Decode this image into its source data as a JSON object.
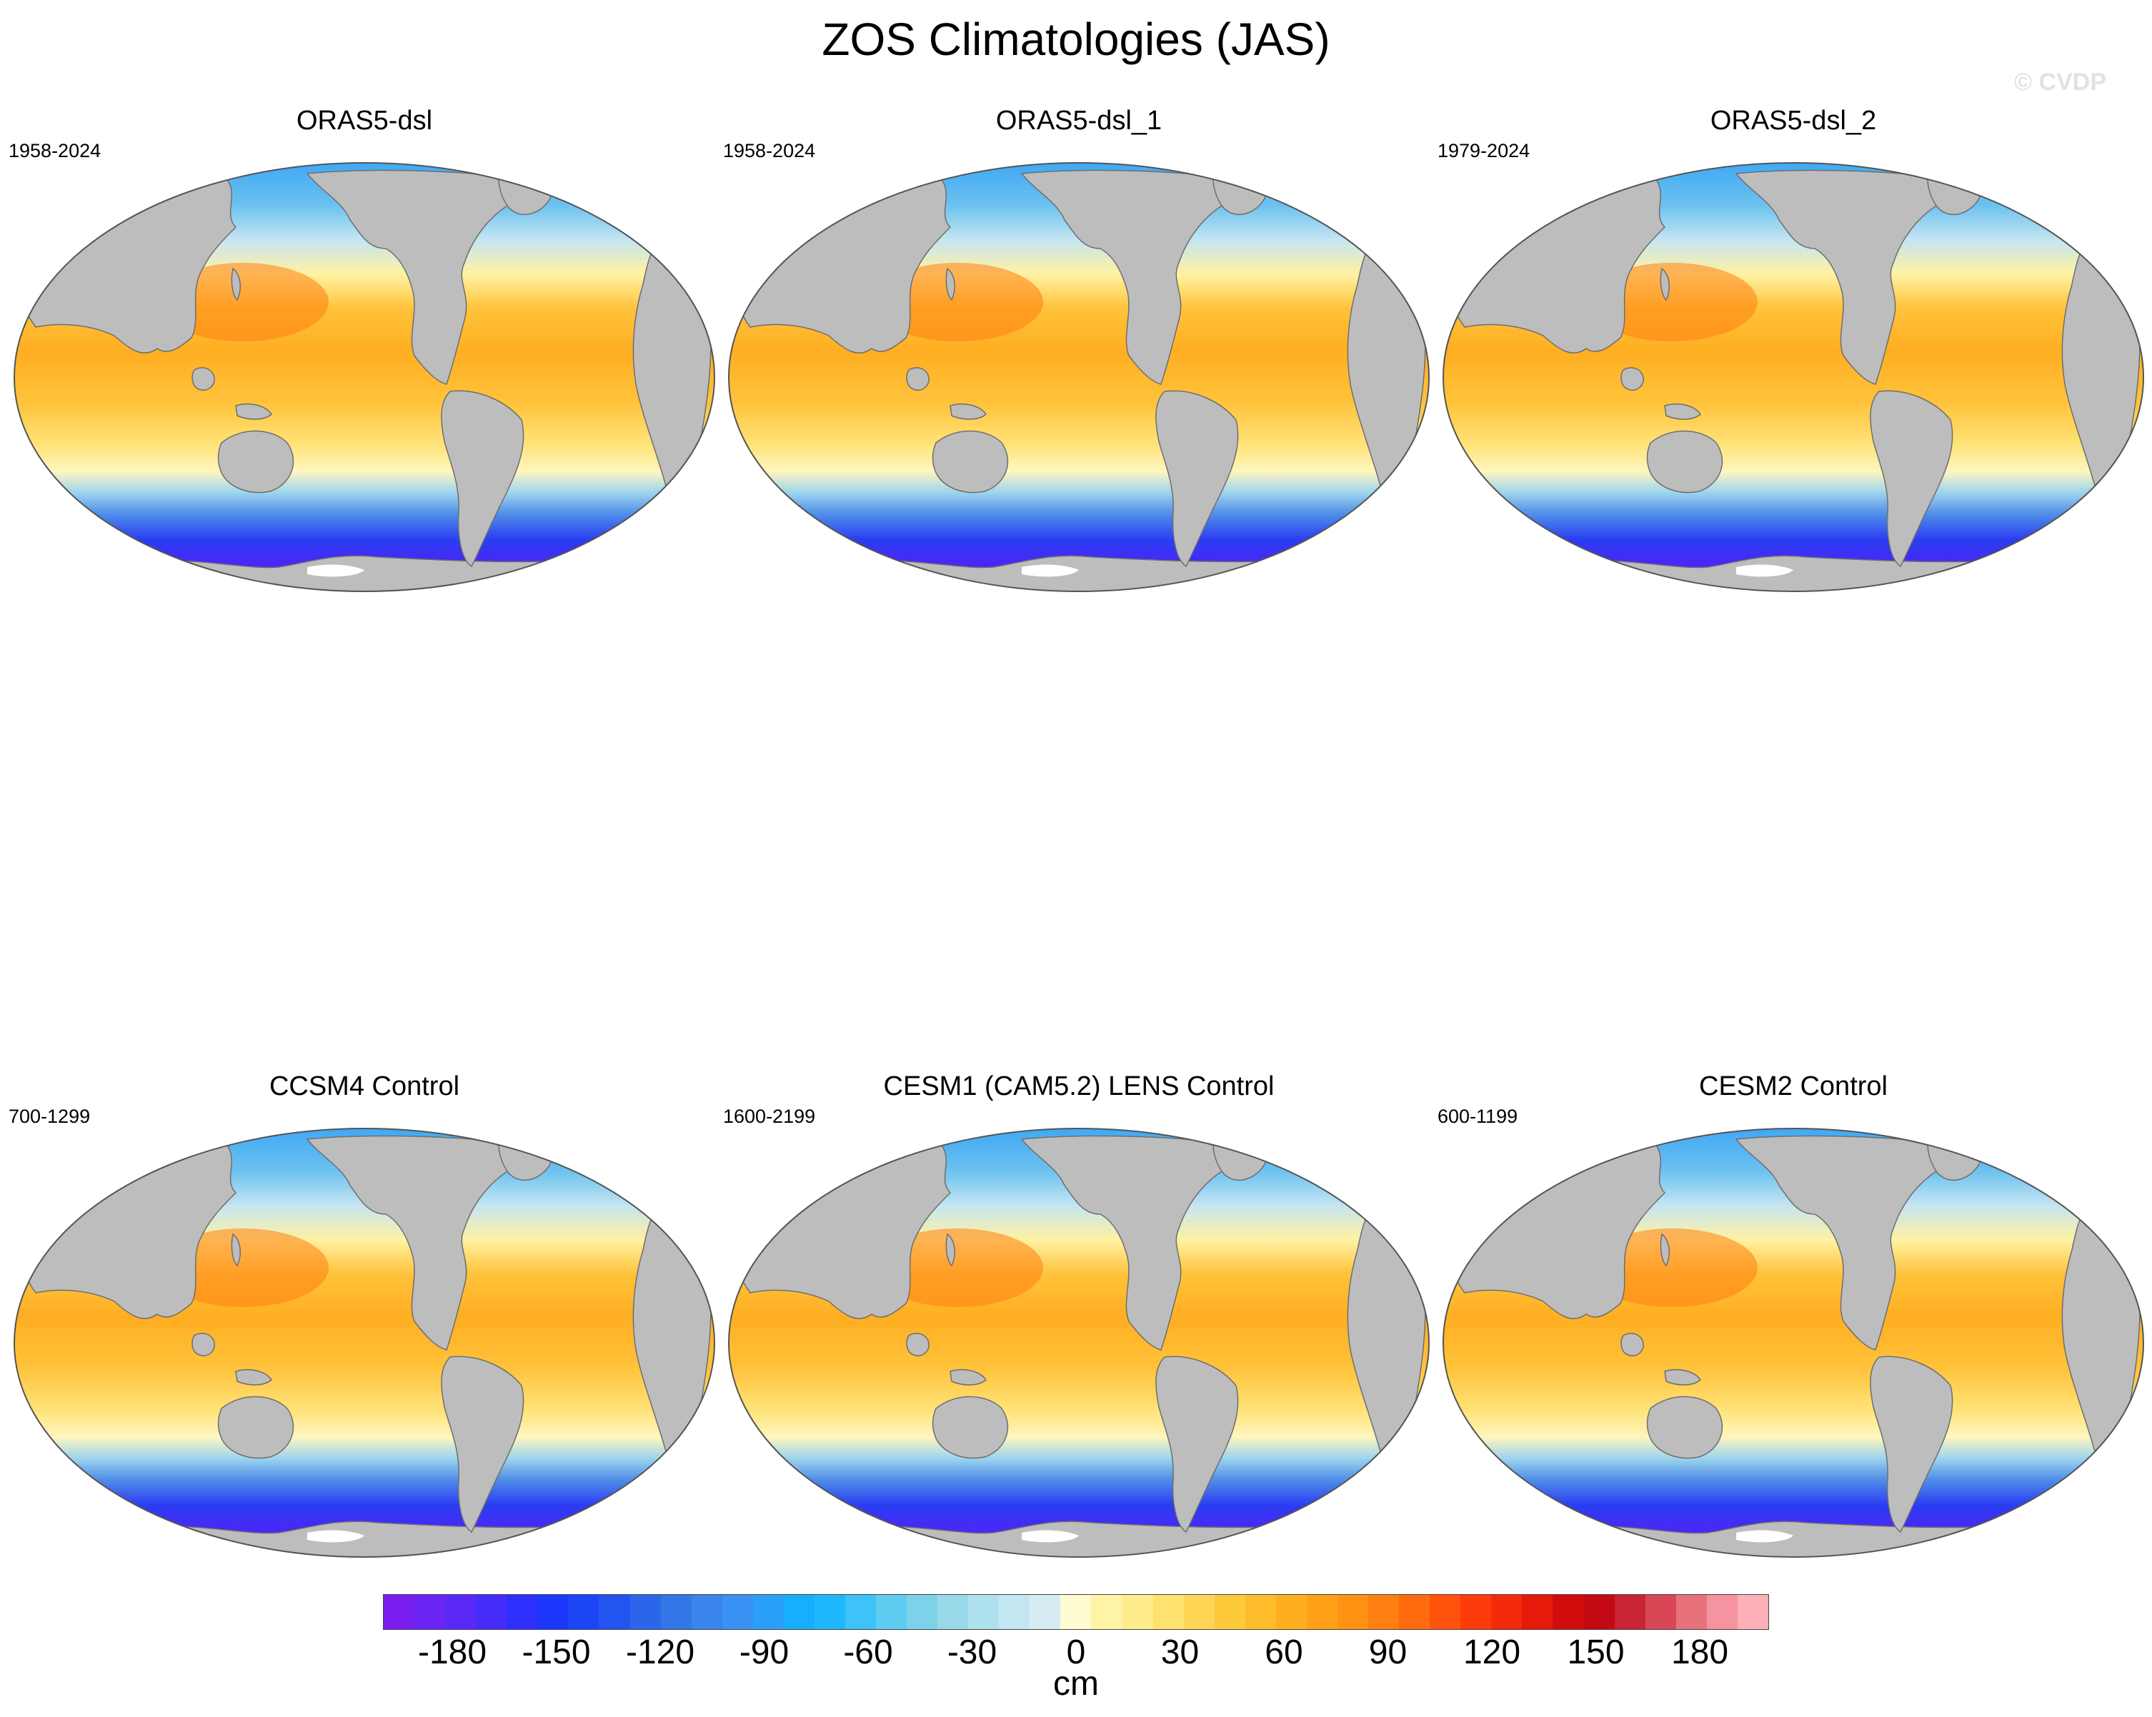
{
  "figure": {
    "title": "ZOS Climatologies (JAS)",
    "watermark": "© CVDP"
  },
  "panels": [
    {
      "title": "ORAS5-dsl",
      "years": "1958-2024"
    },
    {
      "title": "ORAS5-dsl_1",
      "years": "1958-2024"
    },
    {
      "title": "ORAS5-dsl_2",
      "years": "1979-2024"
    },
    {
      "title": "CCSM4 Control",
      "years": "700-1299"
    },
    {
      "title": "CESM1 (CAM5.2) LENS Control",
      "years": "1600-2199"
    },
    {
      "title": "CESM2 Control",
      "years": "600-1199"
    }
  ],
  "colorbar": {
    "units": "cm",
    "min": -200,
    "max": 200,
    "tick_labels": [
      "-180",
      "-150",
      "-120",
      "-90",
      "-60",
      "-30",
      "0",
      "30",
      "60",
      "90",
      "120",
      "150",
      "180"
    ],
    "tick_values": [
      -180,
      -150,
      -120,
      -90,
      -60,
      -30,
      0,
      30,
      60,
      90,
      120,
      150,
      180
    ],
    "colors": [
      "#7a1ff0",
      "#6a24f4",
      "#5a28f7",
      "#462cfa",
      "#2f2ffd",
      "#1a37fb",
      "#1c46f5",
      "#2255ef",
      "#2b66ea",
      "#3376e8",
      "#3a84ee",
      "#3a92f5",
      "#2aa0fb",
      "#17aeff",
      "#1fb8fc",
      "#3fc2f7",
      "#5ecbf0",
      "#7dd2ea",
      "#98d9ea",
      "#afe0ee",
      "#c4e6f2",
      "#d6ecf3",
      "#fffbd0",
      "#fff3a6",
      "#ffec8a",
      "#ffe16f",
      "#ffd555",
      "#ffc93c",
      "#ffbd2b",
      "#ffae1e",
      "#ffa016",
      "#ff9212",
      "#ff7f10",
      "#ff6a0f",
      "#ff520d",
      "#ff3b0b",
      "#f52a0a",
      "#e51a0a",
      "#d20c0c",
      "#c30a14",
      "#c92433",
      "#d94756",
      "#e8727c",
      "#f593a0",
      "#fdb0b8"
    ]
  },
  "palette": {
    "land": "#bdbdbd",
    "ice": "#ffffff",
    "coast": "#6e6e6e"
  }
}
